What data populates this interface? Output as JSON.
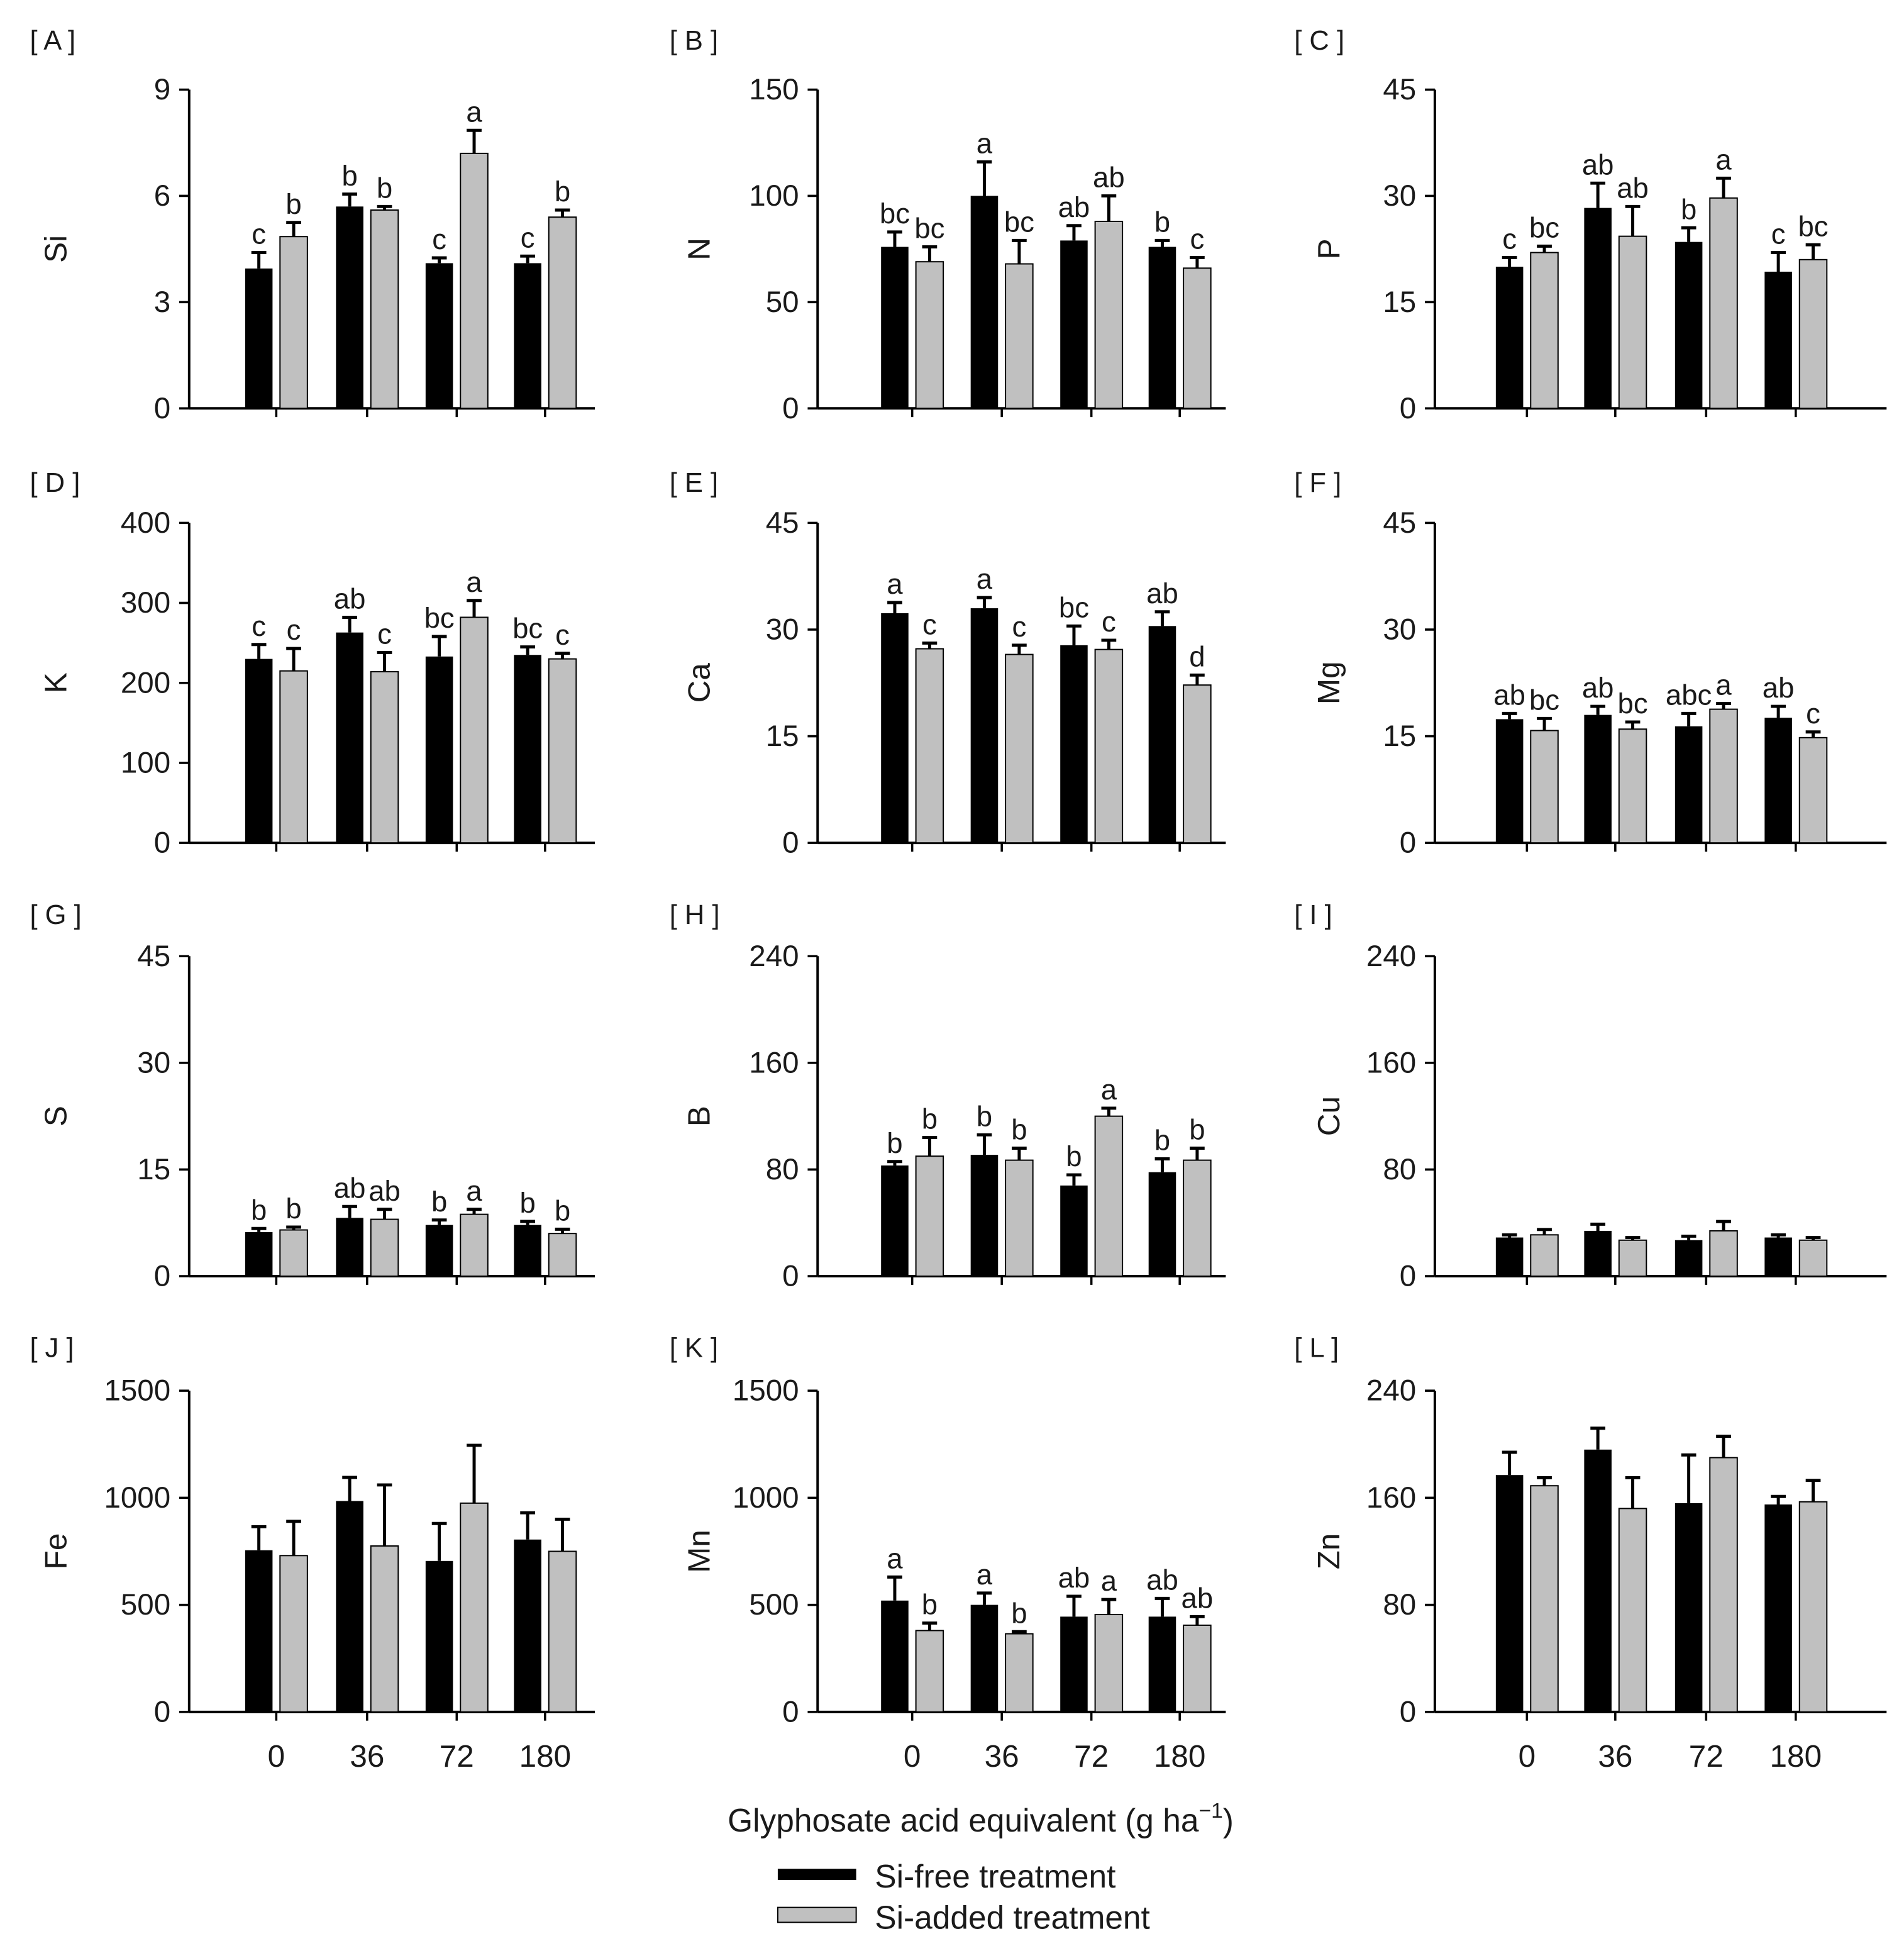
{
  "x_axis_title": {
    "main": "Glyphosate acid equivalent (g ha",
    "sup": "−1",
    "end": ")"
  },
  "legend_position": "bottom-center",
  "chart_data": [
    {
      "panel": "[ A ]",
      "type": "bar",
      "ylabel": "Si",
      "categories": [
        "0",
        "36",
        "72",
        "180"
      ],
      "ylim": [
        0,
        9
      ],
      "yticks": [
        0,
        3,
        6,
        9
      ],
      "series": [
        {
          "name": "Si-free treatment",
          "color": "#000000",
          "values": [
            3.95,
            5.7,
            4.1,
            4.1
          ],
          "errors": [
            0.45,
            0.35,
            0.15,
            0.2
          ],
          "letters": [
            "c",
            "b",
            "c",
            "c"
          ]
        },
        {
          "name": "Si-added treatment",
          "color": "#c0c0c0",
          "values": [
            4.85,
            5.6,
            7.2,
            5.4
          ],
          "errors": [
            0.4,
            0.1,
            0.65,
            0.2
          ],
          "letters": [
            "b",
            "b",
            "a",
            "b"
          ]
        }
      ]
    },
    {
      "panel": "[ B ]",
      "type": "bar",
      "ylabel": "N",
      "categories": [
        "0",
        "36",
        "72",
        "180"
      ],
      "ylim": [
        0,
        150
      ],
      "yticks": [
        0,
        50,
        100,
        150
      ],
      "series": [
        {
          "name": "Si-free treatment",
          "color": "#000000",
          "values": [
            76,
            100,
            79,
            76
          ],
          "errors": [
            7,
            16,
            7,
            3
          ],
          "letters": [
            "bc",
            "a",
            "ab",
            "b"
          ]
        },
        {
          "name": "Si-added treatment",
          "color": "#c0c0c0",
          "values": [
            69,
            68,
            88,
            66
          ],
          "errors": [
            7,
            11,
            12,
            5
          ],
          "letters": [
            "bc",
            "bc",
            "ab",
            "c"
          ]
        }
      ]
    },
    {
      "panel": "[ C ]",
      "type": "bar",
      "ylabel": "P",
      "categories": [
        "0",
        "36",
        "72",
        "180"
      ],
      "ylim": [
        0,
        45
      ],
      "yticks": [
        0,
        15,
        30,
        45
      ],
      "series": [
        {
          "name": "Si-free treatment",
          "color": "#000000",
          "values": [
            20,
            28.3,
            23.5,
            19.3
          ],
          "errors": [
            1.3,
            3.5,
            2,
            2.7
          ],
          "letters": [
            "c",
            "ab",
            "b",
            "c"
          ]
        },
        {
          "name": "Si-added treatment",
          "color": "#c0c0c0",
          "values": [
            22,
            24.3,
            29.7,
            21
          ],
          "errors": [
            0.9,
            4.2,
            2.8,
            2.1
          ],
          "letters": [
            "bc",
            "ab",
            "a",
            "bc"
          ]
        }
      ]
    },
    {
      "panel": "[ D ]",
      "type": "bar",
      "ylabel": "K",
      "categories": [
        "0",
        "36",
        "72",
        "180"
      ],
      "ylim": [
        0,
        400
      ],
      "yticks": [
        0,
        100,
        200,
        300,
        400
      ],
      "series": [
        {
          "name": "Si-free treatment",
          "color": "#000000",
          "values": [
            230,
            263,
            233,
            235
          ],
          "errors": [
            18,
            19,
            25,
            10
          ],
          "letters": [
            "c",
            "ab",
            "bc",
            "bc"
          ]
        },
        {
          "name": "Si-added treatment",
          "color": "#c0c0c0",
          "values": [
            215,
            214,
            282,
            230
          ],
          "errors": [
            28,
            24,
            21,
            7
          ],
          "letters": [
            "c",
            "c",
            "a",
            "c"
          ]
        }
      ]
    },
    {
      "panel": "[ E ]",
      "type": "bar",
      "ylabel": "Ca",
      "categories": [
        "0",
        "36",
        "72",
        "180"
      ],
      "ylim": [
        0,
        45
      ],
      "yticks": [
        0,
        15,
        30,
        45
      ],
      "series": [
        {
          "name": "Si-free treatment",
          "color": "#000000",
          "values": [
            32.3,
            33,
            27.8,
            30.5
          ],
          "errors": [
            1.5,
            1.5,
            2.7,
            2
          ],
          "letters": [
            "a",
            "a",
            "bc",
            "ab"
          ]
        },
        {
          "name": "Si-added treatment",
          "color": "#c0c0c0",
          "values": [
            27.3,
            26.5,
            27.2,
            22.2
          ],
          "errors": [
            0.8,
            1.3,
            1.3,
            1.4
          ],
          "letters": [
            "c",
            "c",
            "c",
            "d"
          ]
        }
      ]
    },
    {
      "panel": "[ F ]",
      "type": "bar",
      "ylabel": "Mg",
      "categories": [
        "0",
        "36",
        "72",
        "180"
      ],
      "ylim": [
        0,
        45
      ],
      "yticks": [
        0,
        15,
        30,
        45
      ],
      "series": [
        {
          "name": "Si-free treatment",
          "color": "#000000",
          "values": [
            17.4,
            18,
            16.4,
            17.6
          ],
          "errors": [
            0.8,
            1.2,
            1.8,
            1.6
          ],
          "letters": [
            "ab",
            "ab",
            "abc",
            "ab"
          ]
        },
        {
          "name": "Si-added treatment",
          "color": "#c0c0c0",
          "values": [
            15.8,
            16,
            18.8,
            14.8
          ],
          "errors": [
            1.7,
            1,
            0.8,
            0.8
          ],
          "letters": [
            "bc",
            "bc",
            "a",
            "c"
          ]
        }
      ]
    },
    {
      "panel": "[ G ]",
      "type": "bar",
      "ylabel": "S",
      "categories": [
        "0",
        "36",
        "72",
        "180"
      ],
      "ylim": [
        0,
        45
      ],
      "yticks": [
        0,
        15,
        30,
        45
      ],
      "series": [
        {
          "name": "Si-free treatment",
          "color": "#000000",
          "values": [
            6.2,
            8.2,
            7.2,
            7.2
          ],
          "errors": [
            0.5,
            1.6,
            0.7,
            0.5
          ],
          "letters": [
            "b",
            "ab",
            "b",
            "b"
          ]
        },
        {
          "name": "Si-added treatment",
          "color": "#c0c0c0",
          "values": [
            6.5,
            8,
            8.7,
            6
          ],
          "errors": [
            0.4,
            1.4,
            0.7,
            0.6
          ],
          "letters": [
            "b",
            "ab",
            "a",
            "b"
          ]
        }
      ]
    },
    {
      "panel": "[ H ]",
      "type": "bar",
      "ylabel": "B",
      "categories": [
        "0",
        "36",
        "72",
        "180"
      ],
      "ylim": [
        0,
        240
      ],
      "yticks": [
        0,
        80,
        160,
        240
      ],
      "series": [
        {
          "name": "Si-free treatment",
          "color": "#000000",
          "values": [
            83,
            91,
            68,
            78
          ],
          "errors": [
            3,
            15,
            8,
            10
          ],
          "letters": [
            "b",
            "b",
            "b",
            "b"
          ]
        },
        {
          "name": "Si-added treatment",
          "color": "#c0c0c0",
          "values": [
            90,
            87,
            120,
            87
          ],
          "errors": [
            14,
            9,
            6,
            9
          ],
          "letters": [
            "b",
            "b",
            "a",
            "b"
          ]
        }
      ]
    },
    {
      "panel": "[ I ]",
      "type": "bar",
      "ylabel": "Cu",
      "categories": [
        "0",
        "36",
        "72",
        "180"
      ],
      "ylim": [
        0,
        240
      ],
      "yticks": [
        0,
        80,
        160,
        240
      ],
      "series": [
        {
          "name": "Si-free treatment",
          "color": "#000000",
          "values": [
            29,
            34,
            27,
            29
          ],
          "errors": [
            2,
            5,
            3,
            2
          ]
        },
        {
          "name": "Si-added treatment",
          "color": "#c0c0c0",
          "values": [
            31,
            27,
            34,
            27
          ],
          "errors": [
            4,
            2,
            7,
            2
          ]
        }
      ]
    },
    {
      "panel": "[ J ]",
      "type": "bar",
      "ylabel": "Fe",
      "categories": [
        "0",
        "36",
        "72",
        "180"
      ],
      "ylim": [
        0,
        1500
      ],
      "yticks": [
        0,
        500,
        1000,
        1500
      ],
      "series": [
        {
          "name": "Si-free treatment",
          "color": "#000000",
          "values": [
            755,
            985,
            705,
            805
          ],
          "errors": [
            110,
            110,
            175,
            125
          ]
        },
        {
          "name": "Si-added treatment",
          "color": "#c0c0c0",
          "values": [
            730,
            775,
            975,
            750
          ],
          "errors": [
            160,
            285,
            270,
            150
          ]
        }
      ]
    },
    {
      "panel": "[ K ]",
      "type": "bar",
      "ylabel": "Mn",
      "categories": [
        "0",
        "36",
        "72",
        "180"
      ],
      "ylim": [
        0,
        1500
      ],
      "yticks": [
        0,
        500,
        1000,
        1500
      ],
      "series": [
        {
          "name": "Si-free treatment",
          "color": "#000000",
          "values": [
            520,
            500,
            445,
            445
          ],
          "errors": [
            110,
            55,
            95,
            85
          ],
          "letters": [
            "a",
            "a",
            "ab",
            "ab"
          ]
        },
        {
          "name": "Si-added treatment",
          "color": "#c0c0c0",
          "values": [
            380,
            365,
            455,
            405
          ],
          "errors": [
            35,
            10,
            70,
            40
          ],
          "letters": [
            "b",
            "b",
            "a",
            "ab"
          ]
        }
      ]
    },
    {
      "panel": "[ L ]",
      "type": "bar",
      "ylabel": "Zn",
      "categories": [
        "0",
        "36",
        "72",
        "180"
      ],
      "ylim": [
        0,
        240
      ],
      "yticks": [
        0,
        80,
        160,
        240
      ],
      "series": [
        {
          "name": "Si-free treatment",
          "color": "#000000",
          "values": [
            177,
            196,
            156,
            155
          ],
          "errors": [
            17,
            16,
            36,
            6
          ]
        },
        {
          "name": "Si-added treatment",
          "color": "#c0c0c0",
          "values": [
            169,
            152,
            190,
            157
          ],
          "errors": [
            6,
            23,
            16,
            16
          ]
        }
      ]
    }
  ]
}
